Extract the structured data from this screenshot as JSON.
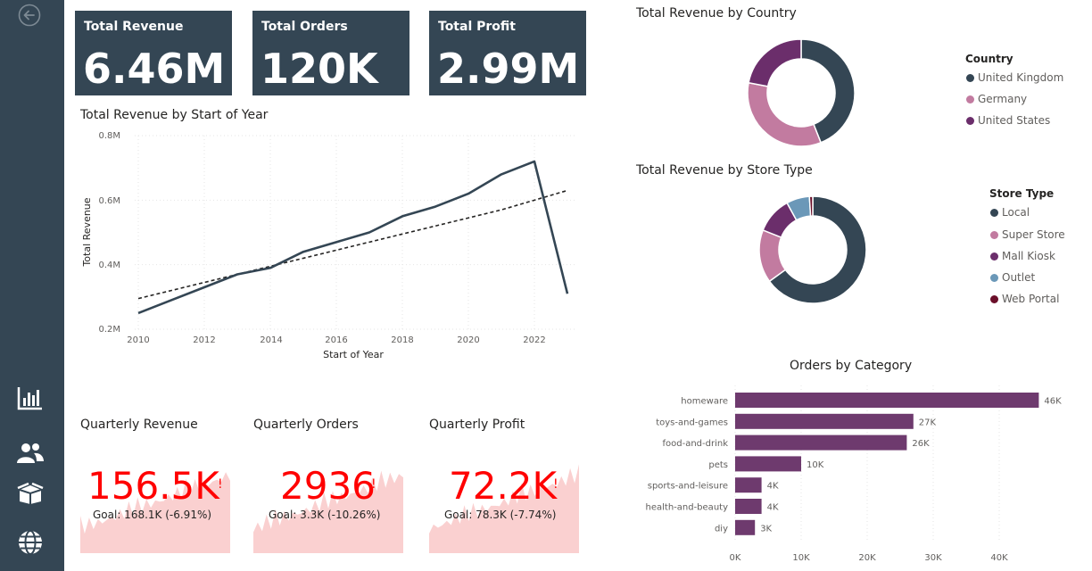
{
  "nav": {
    "icons": [
      "back-arrow-icon",
      "bar-chart-icon",
      "users-icon",
      "box-icon",
      "globe-icon"
    ]
  },
  "cards": [
    {
      "title": "Total Revenue",
      "value": "6.46M"
    },
    {
      "title": "Total Orders",
      "value": "120K"
    },
    {
      "title": "Total Profit",
      "value": "2.99M"
    }
  ],
  "line_chart": {
    "title": "Total Revenue by Start of Year",
    "xlabel": "Start of Year",
    "ylabel": "Total Revenue",
    "yticks": [
      "0.8M",
      "0.6M",
      "0.4M",
      "0.2M"
    ],
    "xticks": [
      "2010",
      "2012",
      "2014",
      "2016",
      "2018",
      "2020",
      "2022"
    ]
  },
  "country_chart": {
    "title": "Total Revenue by Country",
    "legend_title": "Country",
    "items": [
      "United Kingdom",
      "Germany",
      "United States"
    ]
  },
  "store_chart": {
    "title": "Total Revenue by Store Type",
    "legend_title": "Store Type",
    "items": [
      "Local",
      "Super Store",
      "Mall Kiosk",
      "Outlet",
      "Web Portal"
    ]
  },
  "category_chart": {
    "title": "Orders by Category",
    "xticks": [
      "0K",
      "10K",
      "20K",
      "30K",
      "40K"
    ]
  },
  "kpis": [
    {
      "title": "Quarterly Revenue",
      "value": "156.5K",
      "flag": "!",
      "goal": "Goal: 168.1K (-6.91%)"
    },
    {
      "title": "Quarterly Orders",
      "value": "2936",
      "flag": "!",
      "goal": "Goal: 3.3K (-10.26%)"
    },
    {
      "title": "Quarterly Profit",
      "value": "72.2K",
      "flag": "!",
      "goal": "Goal: 78.3K (-7.74%)"
    }
  ],
  "colors": {
    "sidebar": "#344654",
    "dark_slate": "#344654",
    "pink": "#c27ba0",
    "plum": "#6b2e6b",
    "purple_bar": "#6e3a6e",
    "blue": "#6b98b8",
    "maroon": "#6b0f2a",
    "kpi_red": "#ff0000",
    "kpi_area": "#fad0d0"
  },
  "chart_data": [
    {
      "type": "line",
      "title": "Total Revenue by Start of Year",
      "xlabel": "Start of Year",
      "ylabel": "Total Revenue",
      "x": [
        2010,
        2011,
        2012,
        2013,
        2014,
        2015,
        2016,
        2017,
        2018,
        2019,
        2020,
        2021,
        2022,
        2023
      ],
      "series": [
        {
          "values": [
            0.25,
            0.29,
            0.33,
            0.37,
            0.39,
            0.44,
            0.47,
            0.5,
            0.55,
            0.58,
            0.62,
            0.68,
            0.72,
            0.31
          ]
        },
        {
          "values": [
            0.295,
            0.32,
            0.345,
            0.37,
            0.395,
            0.42,
            0.445,
            0.47,
            0.495,
            0.52,
            0.545,
            0.57,
            0.6,
            0.63
          ]
        }
      ],
      "xlim": [
        2010,
        2023
      ],
      "ylim": [
        0.2,
        0.8
      ],
      "grid": true
    },
    {
      "type": "pie",
      "title": "Total Revenue by Country",
      "categories": [
        "United Kingdom",
        "Germany",
        "United States"
      ],
      "values": [
        44,
        34,
        22
      ],
      "donut": true,
      "legend": "right"
    },
    {
      "type": "pie",
      "title": "Total Revenue by Store Type",
      "categories": [
        "Local",
        "Super Store",
        "Mall Kiosk",
        "Outlet",
        "Web Portal"
      ],
      "values": [
        65,
        16,
        11,
        7,
        1
      ],
      "donut": true,
      "legend": "right"
    },
    {
      "type": "bar",
      "orientation": "horizontal",
      "title": "Orders by Category",
      "categories": [
        "homeware",
        "toys-and-games",
        "food-and-drink",
        "pets",
        "sports-and-leisure",
        "health-and-beauty",
        "diy"
      ],
      "values": [
        46,
        27,
        26,
        10,
        4,
        4,
        3
      ],
      "data_labels": [
        "46K",
        "27K",
        "26K",
        "10K",
        "4K",
        "4K",
        "3K"
      ],
      "xlim": [
        0,
        46
      ],
      "grid": true
    }
  ]
}
